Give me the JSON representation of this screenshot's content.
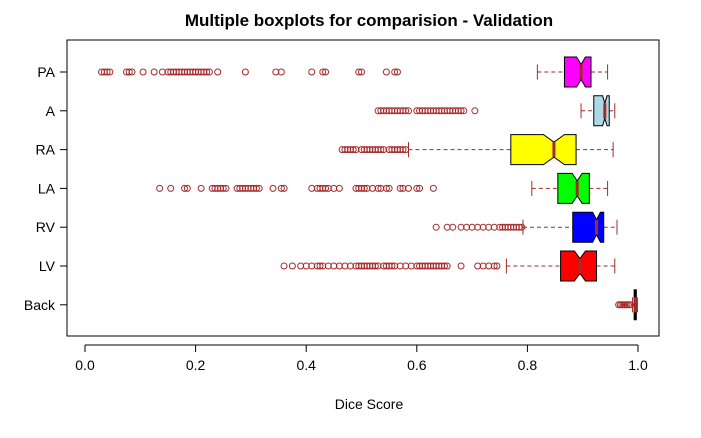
{
  "chart_data": {
    "type": "boxplot",
    "orientation": "horizontal",
    "notched": true,
    "title": "Multiple boxplots for comparision - Validation",
    "xlabel": "Dice Score",
    "ylabel": "",
    "xlim": [
      0.0,
      1.0
    ],
    "x_ticks": [
      "0.0",
      "0.2",
      "0.4",
      "0.6",
      "0.8",
      "1.0"
    ],
    "x_tick_values": [
      0.0,
      0.2,
      0.4,
      0.6,
      0.8,
      1.0
    ],
    "categories": [
      "PA",
      "A",
      "RA",
      "LA",
      "RV",
      "LV",
      "Back"
    ],
    "whisker_color": "#A52A2A",
    "series": [
      {
        "name": "PA",
        "color": "#FF00FF",
        "whisker_low": 0.818,
        "q1": 0.867,
        "median": 0.897,
        "q3": 0.915,
        "whisker_high": 0.945,
        "notch": [
          0.889,
          0.905
        ],
        "outliers": [
          0.03,
          0.035,
          0.04,
          0.045,
          0.075,
          0.08,
          0.085,
          0.105,
          0.125,
          0.14,
          0.15,
          0.155,
          0.16,
          0.165,
          0.17,
          0.175,
          0.18,
          0.185,
          0.19,
          0.195,
          0.2,
          0.205,
          0.21,
          0.215,
          0.22,
          0.225,
          0.24,
          0.29,
          0.345,
          0.355,
          0.41,
          0.43,
          0.435,
          0.495,
          0.5,
          0.545,
          0.56,
          0.565
        ]
      },
      {
        "name": "A",
        "color": "#ADD8E6",
        "whisker_low": 0.897,
        "q1": 0.92,
        "median": 0.94,
        "q3": 0.948,
        "whisker_high": 0.958,
        "notch": [
          0.936,
          0.944
        ],
        "outliers": [
          0.53,
          0.535,
          0.54,
          0.545,
          0.55,
          0.555,
          0.56,
          0.565,
          0.57,
          0.575,
          0.58,
          0.585,
          0.6,
          0.605,
          0.61,
          0.615,
          0.62,
          0.625,
          0.63,
          0.635,
          0.64,
          0.645,
          0.65,
          0.655,
          0.66,
          0.665,
          0.67,
          0.675,
          0.68,
          0.685,
          0.705
        ]
      },
      {
        "name": "RA",
        "color": "#FFFF00",
        "whisker_low": 0.585,
        "q1": 0.77,
        "median": 0.848,
        "q3": 0.888,
        "whisker_high": 0.955,
        "notch": [
          0.829,
          0.867
        ],
        "outliers": [
          0.465,
          0.47,
          0.475,
          0.48,
          0.485,
          0.49,
          0.5,
          0.505,
          0.51,
          0.515,
          0.52,
          0.525,
          0.53,
          0.535,
          0.54,
          0.55,
          0.555,
          0.56,
          0.565,
          0.57,
          0.575,
          0.58
        ]
      },
      {
        "name": "LA",
        "color": "#00FF00",
        "whisker_low": 0.808,
        "q1": 0.855,
        "median": 0.89,
        "q3": 0.912,
        "whisker_high": 0.945,
        "notch": [
          0.881,
          0.899
        ],
        "outliers": [
          0.135,
          0.155,
          0.18,
          0.185,
          0.21,
          0.23,
          0.235,
          0.24,
          0.245,
          0.25,
          0.255,
          0.275,
          0.28,
          0.285,
          0.29,
          0.295,
          0.3,
          0.305,
          0.31,
          0.315,
          0.34,
          0.355,
          0.36,
          0.41,
          0.42,
          0.425,
          0.43,
          0.435,
          0.44,
          0.45,
          0.46,
          0.49,
          0.495,
          0.5,
          0.505,
          0.51,
          0.52,
          0.53,
          0.535,
          0.545,
          0.55,
          0.57,
          0.575,
          0.585,
          0.6,
          0.605,
          0.63
        ]
      },
      {
        "name": "RV",
        "color": "#0000FF",
        "whisker_low": 0.792,
        "q1": 0.882,
        "median": 0.925,
        "q3": 0.938,
        "whisker_high": 0.962,
        "notch": [
          0.918,
          0.932
        ],
        "outliers": [
          0.635,
          0.655,
          0.665,
          0.68,
          0.69,
          0.7,
          0.71,
          0.72,
          0.73,
          0.74,
          0.75,
          0.755,
          0.76,
          0.765,
          0.77,
          0.775,
          0.78,
          0.785,
          0.79
        ]
      },
      {
        "name": "LV",
        "color": "#FF0000",
        "whisker_low": 0.762,
        "q1": 0.86,
        "median": 0.895,
        "q3": 0.925,
        "whisker_high": 0.958,
        "notch": [
          0.885,
          0.905
        ],
        "outliers": [
          0.36,
          0.375,
          0.39,
          0.4,
          0.41,
          0.42,
          0.425,
          0.43,
          0.44,
          0.45,
          0.46,
          0.47,
          0.48,
          0.49,
          0.495,
          0.5,
          0.505,
          0.51,
          0.515,
          0.52,
          0.525,
          0.53,
          0.54,
          0.545,
          0.55,
          0.555,
          0.56,
          0.57,
          0.58,
          0.59,
          0.6,
          0.605,
          0.61,
          0.615,
          0.62,
          0.625,
          0.63,
          0.635,
          0.64,
          0.645,
          0.65,
          0.655,
          0.68,
          0.71,
          0.72,
          0.73,
          0.74,
          0.745
        ]
      },
      {
        "name": "Back",
        "color": "#FF0000",
        "whisker_low": 0.99,
        "q1": 0.993,
        "median": 0.995,
        "q3": 0.997,
        "whisker_high": 0.999,
        "notch": [
          0.994,
          0.996
        ],
        "outliers": [
          0.965,
          0.968,
          0.971,
          0.974,
          0.977,
          0.98,
          0.983,
          0.986
        ]
      }
    ]
  }
}
